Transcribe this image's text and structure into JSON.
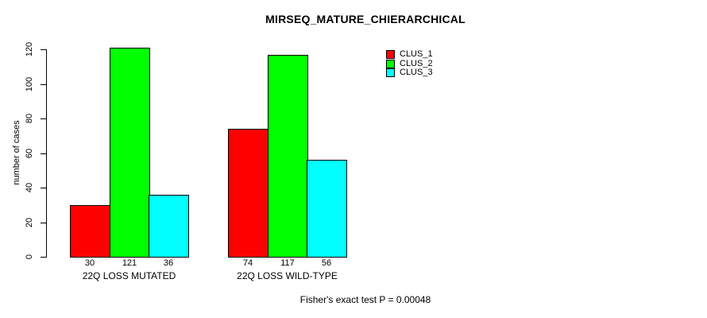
{
  "chart_data": {
    "type": "bar",
    "title": "MIRSEQ_MATURE_CHIERARCHICAL",
    "xlabel": "",
    "ylabel": "number of cases",
    "categories": [
      "22Q LOSS MUTATED",
      "22Q LOSS WILD-TYPE"
    ],
    "series": [
      {
        "name": "CLUS_1",
        "color": "#ff0000",
        "values": [
          30,
          74
        ]
      },
      {
        "name": "CLUS_2",
        "color": "#00ff00",
        "values": [
          121,
          117
        ]
      },
      {
        "name": "CLUS_3",
        "color": "#00ffff",
        "values": [
          36,
          56
        ]
      }
    ],
    "bar_value_labels": [
      [
        30,
        121,
        36
      ],
      [
        74,
        117,
        56
      ]
    ],
    "yticks": [
      0,
      20,
      40,
      60,
      80,
      100,
      120
    ],
    "ylim": [
      0,
      120
    ],
    "grid": false,
    "legend_position": "top-right-inside",
    "annotation": "Fisher's exact test P = 0.00048",
    "colors": {
      "background": "#ffffff",
      "axis": "#000000",
      "text": "#000000"
    }
  }
}
